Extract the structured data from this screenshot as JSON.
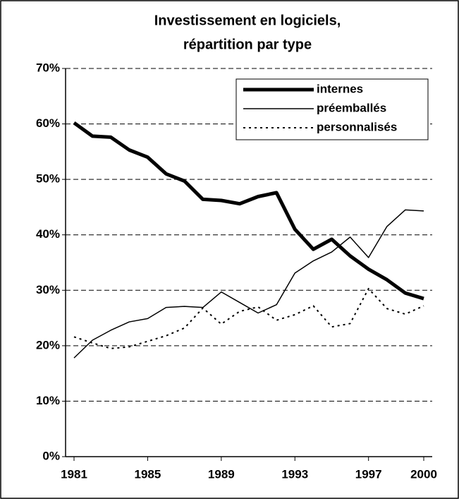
{
  "chart_data": {
    "type": "line",
    "title": [
      "Investissement en logiciels,",
      "répartition par type"
    ],
    "x": [
      1981,
      1982,
      1983,
      1984,
      1985,
      1986,
      1987,
      1988,
      1989,
      1990,
      1991,
      1992,
      1993,
      1994,
      1995,
      1996,
      1997,
      1998,
      1999,
      2000
    ],
    "series": [
      {
        "name": "internes",
        "color": "#000000",
        "width": 5,
        "dash": "solid",
        "values": [
          60.2,
          57.8,
          57.6,
          55.3,
          54.0,
          51.0,
          49.7,
          46.4,
          46.2,
          45.6,
          46.9,
          47.6,
          41.0,
          37.4,
          39.2,
          36.2,
          33.8,
          31.9,
          29.5,
          28.5
        ]
      },
      {
        "name": "préemballés",
        "color": "#000000",
        "width": 1.5,
        "dash": "solid",
        "values": [
          17.8,
          21.0,
          22.8,
          24.3,
          24.9,
          26.9,
          27.1,
          26.9,
          29.7,
          27.8,
          25.9,
          27.4,
          33.1,
          35.3,
          36.9,
          39.6,
          35.9,
          41.5,
          44.5,
          44.3
        ]
      },
      {
        "name": "personnalisés",
        "color": "#000000",
        "width": 2,
        "dash": "dotted",
        "values": [
          21.6,
          20.5,
          19.5,
          19.8,
          20.8,
          21.8,
          23.2,
          26.8,
          23.9,
          26.2,
          27.0,
          24.6,
          25.6,
          27.2,
          23.4,
          24.0,
          30.3,
          26.7,
          25.7,
          27.2
        ]
      }
    ],
    "xlim": [
      1981,
      2000
    ],
    "xticks": [
      1981,
      1985,
      1989,
      1993,
      1997,
      2000
    ],
    "ylim": [
      0,
      70
    ],
    "yticks": [
      {
        "value": 0,
        "label": "0%"
      },
      {
        "value": 10,
        "label": "10%"
      },
      {
        "value": 20,
        "label": "20%"
      },
      {
        "value": 30,
        "label": "30%"
      },
      {
        "value": 40,
        "label": "40%"
      },
      {
        "value": 50,
        "label": "50%"
      },
      {
        "value": 60,
        "label": "60%"
      },
      {
        "value": 70,
        "label": "70%"
      }
    ],
    "grid": true,
    "legend": "top-right"
  }
}
